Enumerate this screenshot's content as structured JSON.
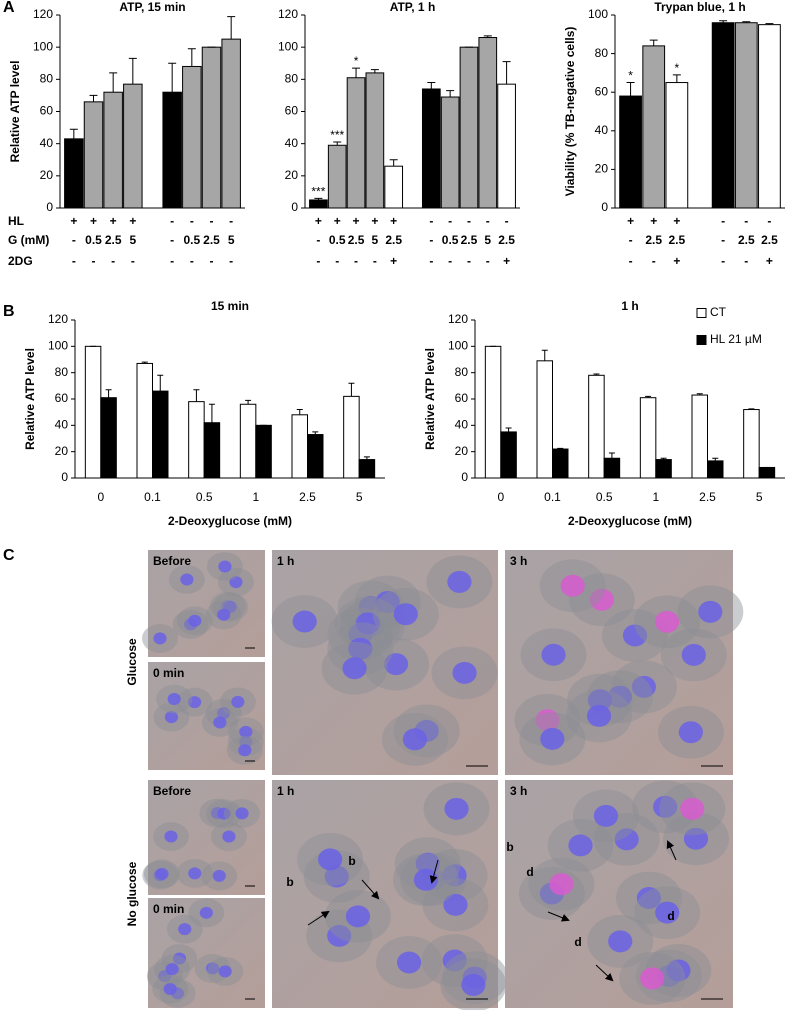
{
  "panel_labels": [
    "A",
    "B",
    "C"
  ],
  "conditions": {
    "labels": [
      "HL",
      "G (mM)",
      "2DG"
    ]
  },
  "chart_data": [
    {
      "type": "bar",
      "title": "ATP, 15 min",
      "ylabel": "Relative ATP level",
      "ylim": [
        0,
        120
      ],
      "yticks": [
        0,
        20,
        40,
        60,
        80,
        100,
        120
      ],
      "values": [
        43,
        66,
        72,
        77,
        72,
        88,
        100,
        105
      ],
      "errors": [
        6,
        4,
        12,
        16,
        18,
        11,
        0,
        14
      ],
      "colors": [
        "#000000",
        "#a6a6a6",
        "#a6a6a6",
        "#a6a6a6",
        "#000000",
        "#a6a6a6",
        "#a6a6a6",
        "#a6a6a6"
      ],
      "condition_values": [
        [
          "+",
          "+",
          "+",
          "+",
          "-",
          "-",
          "-",
          "-"
        ],
        [
          "-",
          "0.5",
          "2.5",
          "5",
          "-",
          "0.5",
          "2.5",
          "5"
        ],
        [
          "-",
          "-",
          "-",
          "-",
          "-",
          "-",
          "-",
          "-"
        ]
      ]
    },
    {
      "type": "bar",
      "title": "ATP, 1 h",
      "ylim": [
        0,
        120
      ],
      "yticks": [
        0,
        20,
        40,
        60,
        80,
        100,
        120
      ],
      "values": [
        5,
        39,
        81,
        84,
        26,
        74,
        69,
        100,
        106,
        77
      ],
      "errors": [
        1,
        2,
        6,
        2,
        4,
        4,
        4,
        0,
        1,
        14
      ],
      "colors": [
        "#000000",
        "#a6a6a6",
        "#a6a6a6",
        "#a6a6a6",
        "#ffffff",
        "#000000",
        "#a6a6a6",
        "#a6a6a6",
        "#a6a6a6",
        "#ffffff"
      ],
      "annotations": [
        "***",
        "***",
        "*",
        null,
        null,
        null,
        null,
        null,
        null,
        null
      ],
      "condition_values": [
        [
          "+",
          "+",
          "+",
          "+",
          "+",
          "-",
          "-",
          "-",
          "-",
          "-"
        ],
        [
          "-",
          "0.5",
          "2.5",
          "5",
          "2.5",
          "-",
          "0.5",
          "2.5",
          "5",
          "2.5"
        ],
        [
          "-",
          "-",
          "-",
          "-",
          "+",
          "-",
          "-",
          "-",
          "-",
          "+"
        ]
      ]
    },
    {
      "type": "bar",
      "title": "Trypan blue, 1 h",
      "ylabel": "Viability (% TB-negative cells)",
      "ylim": [
        0,
        100
      ],
      "yticks": [
        0,
        20,
        40,
        60,
        80,
        100
      ],
      "values": [
        58,
        84,
        65,
        96,
        96,
        95
      ],
      "errors": [
        7,
        3,
        4,
        1,
        0.5,
        0.5
      ],
      "colors": [
        "#000000",
        "#a6a6a6",
        "#ffffff",
        "#000000",
        "#a6a6a6",
        "#ffffff"
      ],
      "annotations": [
        "*",
        null,
        "*",
        null,
        null,
        null
      ],
      "condition_values": [
        [
          "+",
          "+",
          "+",
          "-",
          "-",
          "-"
        ],
        [
          "-",
          "2.5",
          "2.5",
          "-",
          "2.5",
          "2.5"
        ],
        [
          "-",
          "-",
          "+",
          "-",
          "-",
          "+"
        ]
      ]
    },
    {
      "type": "bar",
      "title": "15 min",
      "ylabel": "Relative ATP level",
      "xlabel": "2-Deoxyglucose (mM)",
      "ylim": [
        0,
        120
      ],
      "yticks": [
        0,
        20,
        40,
        60,
        80,
        100,
        120
      ],
      "categories": [
        "0",
        "0.1",
        "0.5",
        "1",
        "2.5",
        "5"
      ],
      "series": [
        {
          "color": "#ffffff",
          "values": [
            100,
            87,
            58,
            56,
            48,
            62
          ],
          "errors": [
            0,
            1,
            9,
            3,
            4,
            10
          ]
        },
        {
          "color": "#000000",
          "values": [
            61,
            66,
            42,
            40,
            33,
            14
          ],
          "errors": [
            6,
            12,
            14,
            0,
            2,
            2
          ]
        }
      ]
    },
    {
      "type": "bar",
      "title": "1 h",
      "ylabel": "Relative ATP level",
      "xlabel": "2-Deoxyglucose (mM)",
      "ylim": [
        0,
        120
      ],
      "yticks": [
        0,
        20,
        40,
        60,
        80,
        100,
        120
      ],
      "categories": [
        "0",
        "0.1",
        "0.5",
        "1",
        "2.5",
        "5"
      ],
      "legend": "top-right",
      "series": [
        {
          "name": "CT",
          "color": "#ffffff",
          "values": [
            100,
            89,
            78,
            61,
            63,
            52
          ],
          "errors": [
            0,
            8,
            1,
            1,
            1,
            0.5
          ]
        },
        {
          "name": "HL 21 µM",
          "color": "#000000",
          "values": [
            35,
            22,
            15,
            14,
            13,
            8
          ],
          "errors": [
            3,
            0.5,
            4,
            1,
            2,
            0
          ]
        }
      ]
    }
  ],
  "micrographs": {
    "rows": [
      {
        "condition": "Glucose",
        "panels": [
          "Before",
          "0 min",
          "1 h",
          "3 h"
        ]
      },
      {
        "condition": "No glucose",
        "panels": [
          "Before",
          "0 min",
          "1 h",
          "3 h"
        ],
        "arrow_labels": [
          "b",
          "b",
          "b",
          "d",
          "d",
          "d"
        ]
      }
    ]
  }
}
